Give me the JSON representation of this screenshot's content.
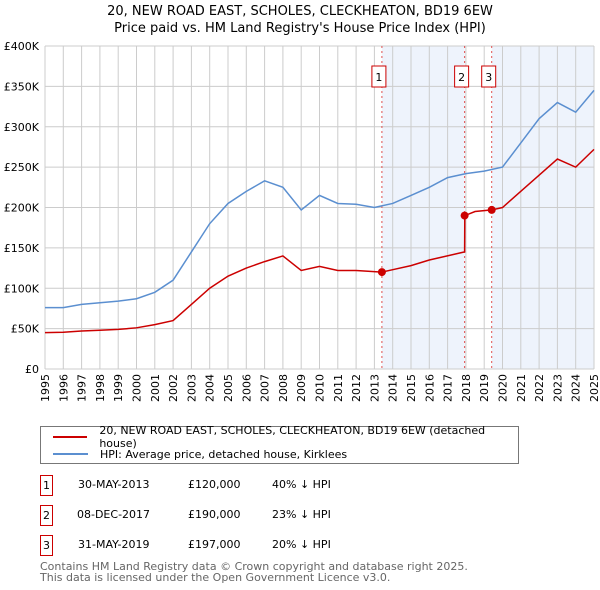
{
  "title": "20, NEW ROAD EAST, SCHOLES, CLECKHEATON, BD19 6EW",
  "subtitle": "Price paid vs. HM Land Registry's House Price Index (HPI)",
  "chart_data": {
    "type": "line",
    "xlim": [
      1995,
      2025
    ],
    "ylim": [
      0,
      400000
    ],
    "y_ticks": [
      0,
      50000,
      100000,
      150000,
      200000,
      250000,
      300000,
      350000,
      400000
    ],
    "y_tick_labels": [
      "£0",
      "£50K",
      "£100K",
      "£150K",
      "£200K",
      "£250K",
      "£300K",
      "£350K",
      "£400K"
    ],
    "x_ticks": [
      1995,
      1996,
      1997,
      1998,
      1999,
      2000,
      2001,
      2002,
      2003,
      2004,
      2005,
      2006,
      2007,
      2008,
      2009,
      2010,
      2011,
      2012,
      2013,
      2014,
      2015,
      2016,
      2017,
      2018,
      2019,
      2020,
      2021,
      2022,
      2023,
      2024,
      2025
    ],
    "grid": true,
    "series": [
      {
        "name": "20, NEW ROAD EAST, SCHOLES, CLECKHEATON, BD19 6EW (detached house)",
        "color": "#cc0000",
        "x": [
          1995,
          1996,
          1997,
          1998,
          1999,
          2000,
          2001,
          2002,
          2003,
          2004,
          2005,
          2006,
          2007,
          2008,
          2009,
          2010,
          2011,
          2012,
          2013.41,
          2014,
          2015,
          2016,
          2017.93,
          2017.94,
          2018.5,
          2019.41,
          2020,
          2021,
          2022,
          2023,
          2024,
          2025
        ],
        "y": [
          45000,
          45500,
          47000,
          48000,
          49000,
          51000,
          55000,
          60000,
          80000,
          100000,
          115000,
          125000,
          133000,
          140000,
          122000,
          127000,
          122000,
          122000,
          120000,
          123000,
          128000,
          135000,
          145000,
          190000,
          195000,
          197000,
          200000,
          220000,
          240000,
          260000,
          250000,
          272000
        ]
      },
      {
        "name": "HPI: Average price, detached house, Kirklees",
        "color": "#5b8fd0",
        "x": [
          1995,
          1996,
          1997,
          1998,
          1999,
          2000,
          2001,
          2002,
          2003,
          2004,
          2005,
          2006,
          2007,
          2008,
          2009,
          2010,
          2011,
          2012,
          2013,
          2014,
          2015,
          2016,
          2017,
          2018,
          2019,
          2020,
          2021,
          2022,
          2023,
          2024,
          2025
        ],
        "y": [
          76000,
          76000,
          80000,
          82000,
          84000,
          87000,
          95000,
          110000,
          145000,
          180000,
          205000,
          220000,
          233000,
          225000,
          197000,
          215000,
          205000,
          204000,
          200000,
          205000,
          215000,
          225000,
          237000,
          242000,
          245000,
          250000,
          280000,
          310000,
          330000,
          318000,
          345000
        ]
      }
    ],
    "sales": [
      {
        "label": "1",
        "x": 2013.41,
        "y": 120000
      },
      {
        "label": "2",
        "x": 2017.93,
        "y": 190000
      },
      {
        "label": "3",
        "x": 2019.41,
        "y": 197000
      }
    ]
  },
  "legend": [
    {
      "label": "20, NEW ROAD EAST, SCHOLES, CLECKHEATON, BD19 6EW (detached house)",
      "color": "#cc0000"
    },
    {
      "label": "HPI: Average price, detached house, Kirklees",
      "color": "#5b8fd0"
    }
  ],
  "table": [
    {
      "num": "1",
      "date": "30-MAY-2013",
      "price": "£120,000",
      "hpi": "40% ↓ HPI"
    },
    {
      "num": "2",
      "date": "08-DEC-2017",
      "price": "£190,000",
      "hpi": "23% ↓ HPI"
    },
    {
      "num": "3",
      "date": "31-MAY-2019",
      "price": "£197,000",
      "hpi": "20% ↓ HPI"
    }
  ],
  "footer": [
    "Contains HM Land Registry data © Crown copyright and database right 2025.",
    "This data is licensed under the Open Government Licence v3.0."
  ]
}
